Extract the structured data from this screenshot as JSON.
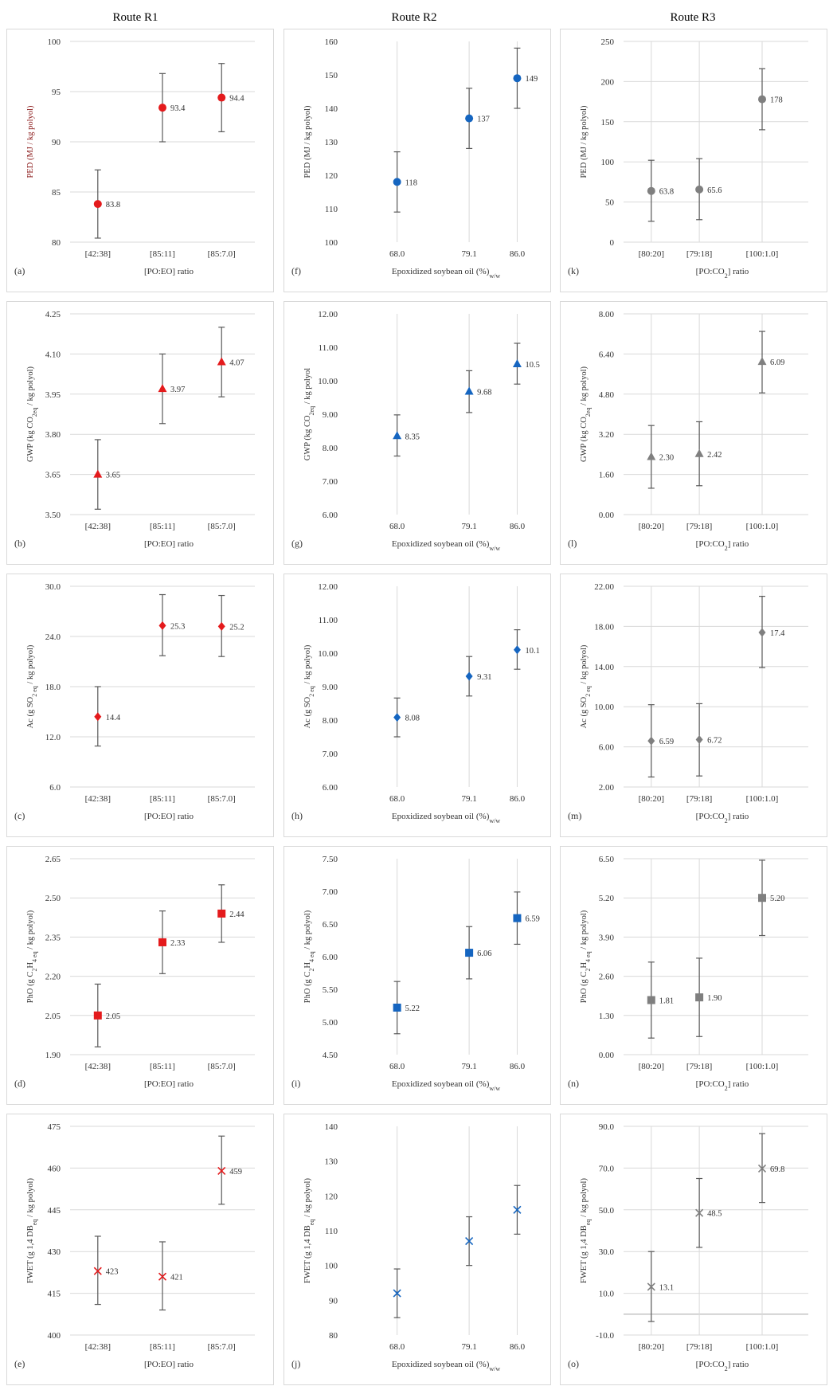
{
  "route_titles": [
    "Route R1",
    "Route R2",
    "Route R3"
  ],
  "colors": {
    "R1": "#e41a1c",
    "R2": "#1565c0",
    "R3": "#7f7f7f",
    "frame": "#d9d9d9",
    "grid": "#d9d9d9",
    "errorbar": "#595959"
  },
  "chart_data": [
    {
      "panel": "a",
      "route": "R1",
      "type": "scatter",
      "marker": "circle",
      "ylabel": "PED (MJ / kg polyol)",
      "xlabel": "[PO:EO] ratio",
      "categories": [
        "[42:38]",
        "[85:11]",
        "[85:7.0]"
      ],
      "values": [
        83.8,
        93.4,
        94.4
      ],
      "value_labels": [
        "83.8",
        "93.4",
        "94.4"
      ],
      "error_low": [
        80.4,
        90.0,
        91.0
      ],
      "error_high": [
        87.2,
        96.8,
        97.8
      ],
      "ylim": [
        80,
        100
      ],
      "yticks": [
        "80",
        "85",
        "90",
        "95",
        "100"
      ],
      "grid": "y"
    },
    {
      "panel": "f",
      "route": "R2",
      "type": "scatter",
      "marker": "circle",
      "ylabel": "PED (MJ / kg polyol)",
      "xlabel": "Epoxidized soybean oil (%)",
      "xlabel_sub": "w/w",
      "categories": [
        "68.0",
        "79.1",
        "86.0"
      ],
      "values": [
        118,
        137,
        149
      ],
      "value_labels": [
        "118",
        "137",
        "149"
      ],
      "error_low": [
        109,
        128,
        140
      ],
      "error_high": [
        127,
        146,
        158
      ],
      "ylim": [
        100,
        160
      ],
      "yticks": [
        "100",
        "110",
        "120",
        "130",
        "140",
        "150",
        "160"
      ],
      "grid": "x"
    },
    {
      "panel": "k",
      "route": "R3",
      "type": "scatter",
      "marker": "circle",
      "ylabel": "PED (MJ / kg polyol)",
      "xlabel": "[PO:CO",
      "xlabel_sub": "2",
      "xlabel_after": "] ratio",
      "categories": [
        "[80:20]",
        "[79:18]",
        "[100:1.0]"
      ],
      "values": [
        63.8,
        65.6,
        178
      ],
      "value_labels": [
        "63.8",
        "65.6",
        "178"
      ],
      "error_low": [
        26,
        28,
        140
      ],
      "error_high": [
        102,
        104,
        216
      ],
      "ylim": [
        0,
        250
      ],
      "yticks": [
        "0",
        "50",
        "100",
        "150",
        "200",
        "250"
      ],
      "grid": "both"
    },
    {
      "panel": "b",
      "route": "R1",
      "type": "scatter",
      "marker": "triangle",
      "ylabel": "GWP (kg CO",
      "ylabel_sub": "2eq",
      "ylabel_after": " / kg polyol)",
      "xlabel": "[PO:EO] ratio",
      "categories": [
        "[42:38]",
        "[85:11]",
        "[85:7.0]"
      ],
      "values": [
        3.65,
        3.97,
        4.07
      ],
      "value_labels": [
        "3.65",
        "3.97",
        "4.07"
      ],
      "error_low": [
        3.52,
        3.84,
        3.94
      ],
      "error_high": [
        3.78,
        4.1,
        4.2
      ],
      "ylim": [
        3.5,
        4.25
      ],
      "yticks": [
        "3.50",
        "3.65",
        "3.80",
        "3.95",
        "4.10",
        "4.25"
      ],
      "grid": "y"
    },
    {
      "panel": "g",
      "route": "R2",
      "type": "scatter",
      "marker": "triangle",
      "ylabel": "GWP (kg CO",
      "ylabel_sub": "2eq",
      "ylabel_after": " / kg polyol",
      "xlabel": "Epoxidized soybean oil (%)",
      "xlabel_sub": "w/w",
      "categories": [
        "68.0",
        "79.1",
        "86.0"
      ],
      "values": [
        8.35,
        9.68,
        10.5
      ],
      "value_labels": [
        "8.35",
        "9.68",
        "10.5"
      ],
      "error_low": [
        7.75,
        9.05,
        9.9
      ],
      "error_high": [
        8.98,
        10.3,
        11.12
      ],
      "ylim": [
        6,
        12
      ],
      "yticks": [
        "6.00",
        "7.00",
        "8.00",
        "9.00",
        "10.00",
        "11.00",
        "12.00"
      ],
      "grid": "x"
    },
    {
      "panel": "l",
      "route": "R3",
      "type": "scatter",
      "marker": "triangle",
      "ylabel": "GWP (kg CO",
      "ylabel_sub": "2eq",
      "ylabel_after": " / kg polyol)",
      "xlabel": "[PO:CO",
      "xlabel_sub": "2",
      "xlabel_after": "] ratio",
      "categories": [
        "[80:20]",
        "[79:18]",
        "[100:1.0]"
      ],
      "values": [
        2.3,
        2.42,
        6.09
      ],
      "value_labels": [
        "2.30",
        "2.42",
        "6.09"
      ],
      "error_low": [
        1.05,
        1.15,
        4.85
      ],
      "error_high": [
        3.55,
        3.7,
        7.3
      ],
      "ylim": [
        0,
        8
      ],
      "yticks": [
        "0.00",
        "1.60",
        "3.20",
        "4.80",
        "6.40",
        "8.00"
      ],
      "grid": "both"
    },
    {
      "panel": "c",
      "route": "R1",
      "type": "scatter",
      "marker": "diamond",
      "ylabel": "Ac (g SO",
      "ylabel_sub": "2 eq",
      "ylabel_after": " / kg polyol)",
      "xlabel": "[PO:EO] ratio",
      "categories": [
        "[42:38]",
        "[85:11]",
        "[85:7.0]"
      ],
      "values": [
        14.4,
        25.3,
        25.2
      ],
      "value_labels": [
        "14.4",
        "25.3",
        "25.2"
      ],
      "error_low": [
        10.9,
        21.7,
        21.6
      ],
      "error_high": [
        18.0,
        29.0,
        28.9
      ],
      "ylim": [
        6,
        30
      ],
      "yticks": [
        "6.0",
        "12.0",
        "18.0",
        "24.0",
        "30.0"
      ],
      "grid": "y"
    },
    {
      "panel": "h",
      "route": "R2",
      "type": "scatter",
      "marker": "diamond",
      "ylabel": "Ac (g SO",
      "ylabel_sub": "2 eq",
      "ylabel_after": " / kg polyol)",
      "xlabel": "Epoxidized soybean oil (%)",
      "xlabel_sub": "w/w",
      "categories": [
        "68.0",
        "79.1",
        "86.0"
      ],
      "values": [
        8.08,
        9.31,
        10.1
      ],
      "value_labels": [
        "8.08",
        "9.31",
        "10.1"
      ],
      "error_low": [
        7.5,
        8.72,
        9.52
      ],
      "error_high": [
        8.66,
        9.9,
        10.7
      ],
      "ylim": [
        6,
        12
      ],
      "yticks": [
        "6.00",
        "7.00",
        "8.00",
        "9.00",
        "10.00",
        "11.00",
        "12.00"
      ],
      "grid": "x"
    },
    {
      "panel": "m",
      "route": "R3",
      "type": "scatter",
      "marker": "diamond",
      "ylabel": "Ac (g SO",
      "ylabel_sub": "2 eq",
      "ylabel_after": " / kg polyol)",
      "xlabel": "[PO:CO",
      "xlabel_sub": "2",
      "xlabel_after": "] ratio",
      "categories": [
        "[80:20]",
        "[79:18]",
        "[100:1.0]"
      ],
      "values": [
        6.59,
        6.72,
        17.4
      ],
      "value_labels": [
        "6.59",
        "6.72",
        "17.4"
      ],
      "error_low": [
        3.0,
        3.1,
        13.9
      ],
      "error_high": [
        10.2,
        10.3,
        21.0
      ],
      "ylim": [
        2,
        22
      ],
      "yticks": [
        "2.00",
        "6.00",
        "10.00",
        "14.00",
        "18.00",
        "22.00"
      ],
      "grid": "both"
    },
    {
      "panel": "d",
      "route": "R1",
      "type": "scatter",
      "marker": "square",
      "ylabel": "PhO (g C",
      "ylabel_sub": "2",
      "ylabel_after": "H",
      "ylabel_sub2": "4 eq",
      "ylabel_after2": " / kg polyol)",
      "xlabel": "[PO:EO] ratio",
      "categories": [
        "[42:38]",
        "[85:11]",
        "[85:7.0]"
      ],
      "values": [
        2.05,
        2.33,
        2.44
      ],
      "value_labels": [
        "2.05",
        "2.33",
        "2.44"
      ],
      "error_low": [
        1.93,
        2.21,
        2.33
      ],
      "error_high": [
        2.17,
        2.45,
        2.55
      ],
      "ylim": [
        1.9,
        2.65
      ],
      "yticks": [
        "1.90",
        "2.05",
        "2.20",
        "2.35",
        "2.50",
        "2.65"
      ],
      "grid": "y"
    },
    {
      "panel": "i",
      "route": "R2",
      "type": "scatter",
      "marker": "square",
      "ylabel": "PhO (g C",
      "ylabel_sub": "2",
      "ylabel_after": "H",
      "ylabel_sub2": "4 eq",
      "ylabel_after2": " / kg polyol)",
      "xlabel": "Epoxidized soybean oil (%)",
      "xlabel_sub": "w/w",
      "categories": [
        "68.0",
        "79.1",
        "86.0"
      ],
      "values": [
        5.22,
        6.06,
        6.59
      ],
      "value_labels": [
        "5.22",
        "6.06",
        "6.59"
      ],
      "error_low": [
        4.82,
        5.66,
        6.19
      ],
      "error_high": [
        5.62,
        6.46,
        6.99
      ],
      "ylim": [
        4.5,
        7.5
      ],
      "yticks": [
        "4.50",
        "5.00",
        "5.50",
        "6.00",
        "6.50",
        "7.00",
        "7.50"
      ],
      "grid": "x"
    },
    {
      "panel": "n",
      "route": "R3",
      "type": "scatter",
      "marker": "square",
      "ylabel": "PhO (g C",
      "ylabel_sub": "2",
      "ylabel_after": "H",
      "ylabel_sub2": "4 eq",
      "ylabel_after2": " / kg polyol)",
      "xlabel": "[PO:CO",
      "xlabel_sub": "2",
      "xlabel_after": "] ratio",
      "categories": [
        "[80:20]",
        "[79:18]",
        "[100:1.0]"
      ],
      "values": [
        1.81,
        1.9,
        5.2
      ],
      "value_labels": [
        "1.81",
        "1.90",
        "5.20"
      ],
      "error_low": [
        0.55,
        0.6,
        3.95
      ],
      "error_high": [
        3.07,
        3.2,
        6.45
      ],
      "ylim": [
        0,
        6.5
      ],
      "yticks": [
        "0.00",
        "1.30",
        "2.60",
        "3.90",
        "5.20",
        "6.50"
      ],
      "grid": "both"
    },
    {
      "panel": "e",
      "route": "R1",
      "type": "scatter",
      "marker": "cross",
      "ylabel": "FWET (g 1,4 DB",
      "ylabel_sub": "eq",
      "ylabel_after": " / kg polyol)",
      "xlabel": "[PO:EO] ratio",
      "categories": [
        "[42:38]",
        "[85:11]",
        "[85:7.0]"
      ],
      "values": [
        423,
        421,
        459
      ],
      "value_labels": [
        "423",
        "421",
        "459"
      ],
      "error_low": [
        411,
        409,
        447
      ],
      "error_high": [
        435.5,
        433.5,
        471.5
      ],
      "ylim": [
        400,
        475
      ],
      "yticks": [
        "400",
        "415",
        "430",
        "445",
        "460",
        "475"
      ],
      "grid": "y"
    },
    {
      "panel": "j",
      "route": "R2",
      "type": "scatter",
      "marker": "cross",
      "ylabel": "FWET (g 1,4 DB",
      "ylabel_sub": "eq",
      "ylabel_after": " / kg polyol)",
      "xlabel": "Epoxidized soybean oil (%)",
      "xlabel_sub": "w/w",
      "categories": [
        "68.0",
        "79.1",
        "86.0"
      ],
      "values": [
        92,
        107,
        116
      ],
      "value_labels": [],
      "error_low": [
        85,
        100,
        109
      ],
      "error_high": [
        99,
        114,
        123
      ],
      "ylim": [
        80,
        140
      ],
      "yticks": [
        "80",
        "90",
        "100",
        "110",
        "120",
        "130",
        "140"
      ],
      "grid": "x"
    },
    {
      "panel": "o",
      "route": "R3",
      "type": "scatter",
      "marker": "cross",
      "ylabel": "FWET (g 1,4 DB",
      "ylabel_sub": "eq",
      "ylabel_after": " / kg polyol)",
      "xlabel": "[PO:CO",
      "xlabel_sub": "2",
      "xlabel_after": "] ratio",
      "categories": [
        "[80:20]",
        "[79:18]",
        "[100:1.0]"
      ],
      "values": [
        13.1,
        48.5,
        69.8
      ],
      "value_labels": [
        "13.1",
        "48.5",
        "69.8"
      ],
      "error_low": [
        -3.5,
        32,
        53.5
      ],
      "error_high": [
        30,
        65,
        86.5
      ],
      "ylim": [
        -10,
        90
      ],
      "yticks": [
        "-10.0",
        "10.0",
        "30.0",
        "50.0",
        "70.0",
        "90.0"
      ],
      "grid": "both",
      "zero_line": true
    }
  ]
}
